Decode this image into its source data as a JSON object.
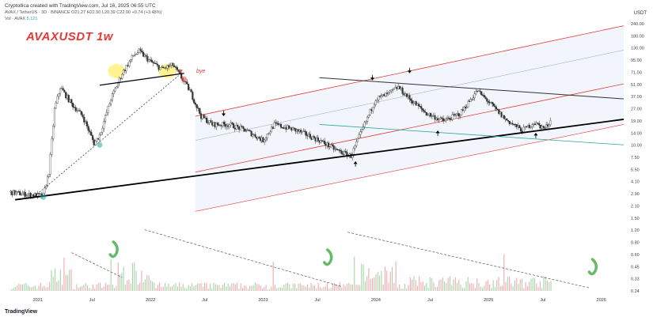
{
  "header": {
    "credit": "Cryptollica created with TradingView.com, Jul 16, 2025 06:55 UTC",
    "symbol_line": "AVAX / TetherUS · 3D · BINANCE  O21.27 H22.50 L20.39 C22.00 +0.74 (+3.48%)",
    "vol_label": "Vol · AVAX",
    "vol_value": "5.121",
    "currency": "USDT"
  },
  "annotations": {
    "title": "AVAXUSDT 1w",
    "bye": "bye"
  },
  "logo": "TradingView",
  "colors": {
    "channel": "#e53935",
    "support": "#000000",
    "resistance": "#333333",
    "teal_line": "#26a69a",
    "highlight_yellow": "#fff176",
    "marker_green": "#26a69a",
    "marker_red": "#ef5350",
    "swoosh_green": "#66bb6a"
  },
  "chart_data": {
    "type": "candlestick",
    "title": "AVAXUSDT 1w",
    "y_scale": "log",
    "y_ticks": [
      "240.00",
      "180.00",
      "130.00",
      "95.00",
      "71.00",
      "51.00",
      "37.00",
      "27.00",
      "19.00",
      "14.00",
      "10.00",
      "7.50",
      "5.50",
      "4.10",
      "2.90",
      "2.10",
      "1.50",
      "1.20",
      "0.80",
      "0.60",
      "0.45",
      "0.33",
      "0.24"
    ],
    "x_ticks": [
      "2021",
      "Jul",
      "2022",
      "Jul",
      "2023",
      "Jul",
      "2024",
      "Jul",
      "2025",
      "Jul",
      "2026"
    ],
    "price_path": [
      {
        "t": 2020.75,
        "p": 3.2
      },
      {
        "t": 2020.9,
        "p": 3.0
      },
      {
        "t": 2021.05,
        "p": 2.9
      },
      {
        "t": 2021.1,
        "p": 5.5
      },
      {
        "t": 2021.15,
        "p": 30
      },
      {
        "t": 2021.2,
        "p": 55
      },
      {
        "t": 2021.3,
        "p": 35
      },
      {
        "t": 2021.4,
        "p": 25
      },
      {
        "t": 2021.5,
        "p": 12
      },
      {
        "t": 2021.55,
        "p": 15
      },
      {
        "t": 2021.65,
        "p": 40
      },
      {
        "t": 2021.75,
        "p": 80
      },
      {
        "t": 2021.85,
        "p": 130
      },
      {
        "t": 2021.9,
        "p": 145
      },
      {
        "t": 2022.0,
        "p": 110
      },
      {
        "t": 2022.1,
        "p": 90
      },
      {
        "t": 2022.2,
        "p": 100
      },
      {
        "t": 2022.25,
        "p": 80
      },
      {
        "t": 2022.35,
        "p": 50
      },
      {
        "t": 2022.45,
        "p": 25
      },
      {
        "t": 2022.55,
        "p": 20
      },
      {
        "t": 2022.7,
        "p": 20
      },
      {
        "t": 2022.85,
        "p": 17
      },
      {
        "t": 2023.0,
        "p": 13
      },
      {
        "t": 2023.1,
        "p": 20
      },
      {
        "t": 2023.3,
        "p": 17
      },
      {
        "t": 2023.5,
        "p": 13
      },
      {
        "t": 2023.65,
        "p": 10
      },
      {
        "t": 2023.78,
        "p": 8.5
      },
      {
        "t": 2023.9,
        "p": 20
      },
      {
        "t": 2024.0,
        "p": 40
      },
      {
        "t": 2024.1,
        "p": 45
      },
      {
        "t": 2024.2,
        "p": 55
      },
      {
        "t": 2024.3,
        "p": 40
      },
      {
        "t": 2024.45,
        "p": 27
      },
      {
        "t": 2024.6,
        "p": 22
      },
      {
        "t": 2024.75,
        "p": 27
      },
      {
        "t": 2024.9,
        "p": 50
      },
      {
        "t": 2025.0,
        "p": 37
      },
      {
        "t": 2025.15,
        "p": 23
      },
      {
        "t": 2025.3,
        "p": 17
      },
      {
        "t": 2025.4,
        "p": 21
      },
      {
        "t": 2025.5,
        "p": 18
      },
      {
        "t": 2025.55,
        "p": 22
      }
    ],
    "trendlines": [
      {
        "name": "long-term-support",
        "from": {
          "t": 2020.8,
          "p": 2.6
        },
        "to": {
          "t": 2026.2,
          "p": 23
        }
      },
      {
        "name": "descending-resistance",
        "from": {
          "t": 2023.5,
          "p": 71
        },
        "to": {
          "t": 2026.2,
          "p": 40
        }
      },
      {
        "name": "inner-support",
        "from": {
          "t": 2023.5,
          "p": 20
        },
        "to": {
          "t": 2026.2,
          "p": 11.5
        }
      },
      {
        "name": "neckline",
        "from": {
          "t": 2021.55,
          "p": 58
        },
        "to": {
          "t": 2022.3,
          "p": 80
        }
      },
      {
        "name": "dotted-link",
        "from": {
          "t": 2020.95,
          "p": 2.7
        },
        "to": {
          "t": 2022.25,
          "p": 75
        }
      }
    ],
    "channel": {
      "from_t": 2022.4,
      "to_t": 2026.2,
      "upper": [
        25,
        290
      ],
      "middle": [
        13,
        150
      ],
      "lower": [
        5.5,
        60
      ],
      "bottom": [
        1.9,
        20
      ]
    },
    "volume_trendlines": [
      {
        "from": {
          "t": 2021.3,
          "v": 0.7
        },
        "to": {
          "t": 2021.75,
          "v": 0.33
        }
      },
      {
        "from": {
          "t": 2021.95,
          "v": 1.4
        },
        "to": {
          "t": 2023.7,
          "v": 0.25
        }
      },
      {
        "from": {
          "t": 2023.75,
          "v": 1.3
        },
        "to": {
          "t": 2025.9,
          "v": 0.24
        }
      }
    ],
    "markers": {
      "down_arrows": [
        {
          "t": 2022.65,
          "p": 25
        },
        {
          "t": 2023.97,
          "p": 66
        },
        {
          "t": 2024.3,
          "p": 80
        }
      ],
      "up_arrows": [
        {
          "t": 2023.82,
          "p": 7.4
        },
        {
          "t": 2024.55,
          "p": 17
        },
        {
          "t": 2025.42,
          "p": 16
        }
      ]
    }
  }
}
